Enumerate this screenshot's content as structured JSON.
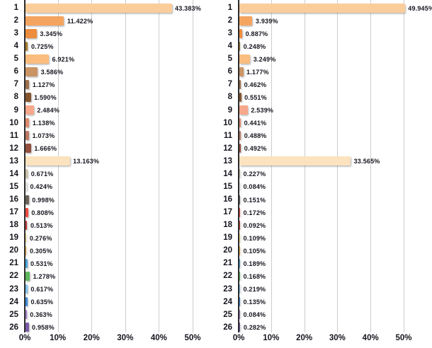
{
  "page": {
    "background": "#FFFFFF"
  },
  "styles": {
    "grid_color": "#CDCDCD",
    "axis_color": "#2B2B2B",
    "text_color": "#15151E"
  },
  "chart_data": [
    {
      "type": "bar",
      "orientation": "horizontal",
      "title": "",
      "xlabel": "",
      "ylabel": "",
      "legend": false,
      "grid": true,
      "xlim": [
        0,
        57
      ],
      "x_ticks": [
        "0%",
        "10%",
        "20%",
        "30%",
        "40%",
        "50%"
      ],
      "x_tick_values": [
        0,
        10,
        20,
        30,
        40,
        50
      ],
      "categories": [
        "1",
        "2",
        "3",
        "4",
        "5",
        "6",
        "7",
        "8",
        "9",
        "10",
        "11",
        "12",
        "13",
        "14",
        "15",
        "16",
        "17",
        "18",
        "19",
        "20",
        "21",
        "22",
        "23",
        "24",
        "25",
        "26"
      ],
      "values": [
        43.383,
        11.422,
        3.345,
        0.725,
        6.921,
        3.586,
        1.127,
        1.59,
        2.484,
        1.138,
        1.073,
        1.666,
        13.163,
        0.671,
        0.424,
        0.998,
        0.808,
        0.513,
        0.276,
        0.305,
        0.531,
        1.278,
        0.617,
        0.635,
        0.363,
        0.958
      ],
      "labels": [
        "43.383%",
        "11.422%",
        "3.345%",
        "0.725%",
        "6.921%",
        "3.586%",
        "1.127%",
        "1.590%",
        "2.484%",
        "1.138%",
        "1.073%",
        "1.666%",
        "13.163%",
        "0.671%",
        "0.424%",
        "0.998%",
        "0.808%",
        "0.513%",
        "0.276%",
        "0.305%",
        "0.531%",
        "1.278%",
        "0.617%",
        "0.635%",
        "0.363%",
        "0.958%"
      ],
      "bar_colors": [
        "#FBCD9B",
        "#F5A45F",
        "#EC8C3C",
        "#A87C2D",
        "#FABD7D",
        "#CB9465",
        "#A0714B",
        "#84552E",
        "#F7A78A",
        "#DE8A6E",
        "#BC7A64",
        "#94503E",
        "#FBE3BF",
        "#C9BFA4",
        "#E4E4DE",
        "#6B6358",
        "#EE4941",
        "#C23B34",
        "#F6DF7F",
        "#F3B33E",
        "#4FA5D8",
        "#5CB85C",
        "#7FC3EE",
        "#3E8BD8",
        "#A77FC9",
        "#7A5BA6"
      ]
    },
    {
      "type": "bar",
      "orientation": "horizontal",
      "title": "",
      "xlabel": "",
      "ylabel": "",
      "legend": false,
      "grid": true,
      "xlim": [
        0,
        57
      ],
      "x_ticks": [
        "0%",
        "10%",
        "20%",
        "30%",
        "40%",
        "50%"
      ],
      "x_tick_values": [
        0,
        10,
        20,
        30,
        40,
        50
      ],
      "categories": [
        "1",
        "2",
        "3",
        "4",
        "5",
        "6",
        "7",
        "8",
        "9",
        "10",
        "11",
        "12",
        "13",
        "14",
        "15",
        "16",
        "17",
        "18",
        "19",
        "20",
        "21",
        "22",
        "23",
        "24",
        "25",
        "26"
      ],
      "values": [
        49.945,
        3.939,
        0.887,
        0.248,
        3.249,
        1.177,
        0.462,
        0.551,
        2.539,
        0.441,
        0.488,
        0.492,
        33.565,
        0.227,
        0.084,
        0.151,
        0.172,
        0.092,
        0.109,
        0.105,
        0.189,
        0.168,
        0.219,
        0.135,
        0.084,
        0.282
      ],
      "labels": [
        "49.945%",
        "3.939%",
        "0.887%",
        "0.248%",
        "3.249%",
        "1.177%",
        "0.462%",
        "0.551%",
        "2.539%",
        "0.441%",
        "0.488%",
        "0.492%",
        "33.565%",
        "0.227%",
        "0.084%",
        "0.151%",
        "0.172%",
        "0.092%",
        "0.109%",
        "0.105%",
        "0.189%",
        "0.168%",
        "0.219%",
        "0.135%",
        "0.084%",
        "0.282%"
      ],
      "bar_colors": [
        "#FBCD9B",
        "#F5A45F",
        "#EC8C3C",
        "#A87C2D",
        "#FABD7D",
        "#CB9465",
        "#A0714B",
        "#84552E",
        "#F7A78A",
        "#DE8A6E",
        "#BC7A64",
        "#94503E",
        "#FBE3BF",
        "#C9BFA4",
        "#E4E4DE",
        "#6B6358",
        "#EE4941",
        "#C23B34",
        "#F6DF7F",
        "#F3B33E",
        "#4FA5D8",
        "#5CB85C",
        "#7FC3EE",
        "#3E8BD8",
        "#A77FC9",
        "#7A5BA6"
      ]
    }
  ]
}
